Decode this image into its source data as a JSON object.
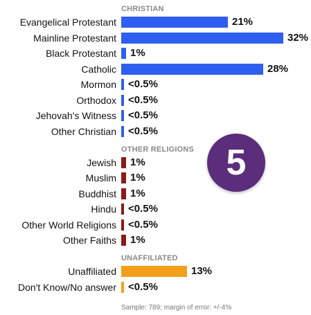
{
  "chart_data": {
    "type": "bar",
    "orientation": "horizontal",
    "groups": [
      {
        "title": "CHRISTIAN",
        "color": "#2f5ff0",
        "categories": [
          "Evangelical Protestant",
          "Mainline Protestant",
          "Black Protestant",
          "Catholic",
          "Mormon",
          "Orthodox",
          "Jehovah's Witness",
          "Other Christian"
        ],
        "values": [
          21,
          32,
          1,
          28,
          0.5,
          0.5,
          0.5,
          0.5
        ],
        "labels": [
          "21%",
          "32%",
          "1%",
          "28%",
          "<0.5%",
          "<0.5%",
          "<0.5%",
          "<0.5%"
        ]
      },
      {
        "title": "OTHER RELIGIONS",
        "color": "#8b1a1a",
        "categories": [
          "Jewish",
          "Muslim",
          "Buddhist",
          "Hindu",
          "Other World Religions",
          "Other Faiths"
        ],
        "values": [
          1,
          1,
          1,
          0.5,
          0.5,
          1
        ],
        "labels": [
          "1%",
          "1%",
          "1%",
          "<0.5%",
          "<0.5%",
          "1%"
        ]
      },
      {
        "title": "UNAFFILIATED",
        "color": "#f2a01c",
        "categories": [
          "Unaffiliated",
          "Don't Know/No answer"
        ],
        "values": [
          13,
          0.5
        ],
        "labels": [
          "13%",
          "<0.5%"
        ]
      }
    ],
    "xlim": [
      0,
      32
    ],
    "grid": false,
    "legend": "none"
  },
  "badge": "5",
  "footnote": "Sample: 789; margin of error: +/-4%"
}
